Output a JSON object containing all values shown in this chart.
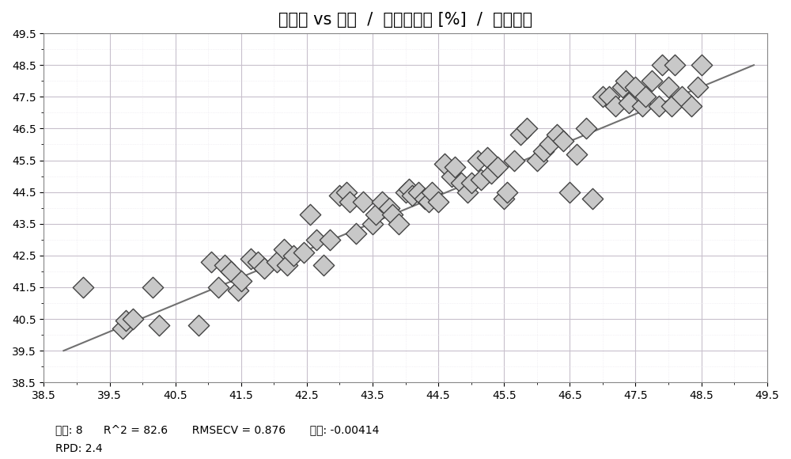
{
  "title": "预测值 vs 真值  /  纤维素含量 [%]  /  交叉检验",
  "xlim": [
    38.5,
    49.5
  ],
  "ylim": [
    38.5,
    49.5
  ],
  "xticks": [
    38.5,
    39.5,
    40.5,
    41.5,
    42.5,
    43.5,
    44.5,
    45.5,
    46.5,
    47.5,
    48.5,
    49.5
  ],
  "yticks": [
    38.5,
    39.5,
    40.5,
    41.5,
    42.5,
    43.5,
    44.5,
    45.5,
    46.5,
    47.5,
    48.5,
    49.5
  ],
  "xlabel_labels": [
    "38.5",
    "39.5",
    "40.5",
    "41.5",
    "42.5",
    "43.5",
    "44.5",
    "45.5",
    "46.5",
    "47.5",
    "48.5",
    "49.5"
  ],
  "ylabel_labels": [
    "38.5",
    "39.5",
    "40.5",
    "41.5",
    "42.5",
    "43.5",
    "44.5",
    "45.5",
    "46.5",
    "47.5",
    "48.5",
    "49.5"
  ],
  "scatter_x": [
    39.1,
    39.7,
    39.75,
    39.85,
    40.15,
    40.25,
    40.85,
    41.05,
    41.15,
    41.25,
    41.35,
    41.45,
    41.5,
    41.65,
    41.75,
    41.85,
    42.05,
    42.15,
    42.2,
    42.3,
    42.45,
    42.55,
    42.65,
    42.75,
    42.85,
    43.0,
    43.1,
    43.15,
    43.25,
    43.35,
    43.5,
    43.55,
    43.65,
    43.75,
    43.8,
    43.9,
    44.0,
    44.05,
    44.1,
    44.2,
    44.3,
    44.35,
    44.4,
    44.5,
    44.6,
    44.7,
    44.75,
    44.85,
    44.95,
    45.0,
    45.1,
    45.15,
    45.25,
    45.3,
    45.4,
    45.5,
    45.55,
    45.65,
    45.75,
    45.85,
    46.0,
    46.1,
    46.2,
    46.3,
    46.4,
    46.5,
    46.6,
    46.75,
    46.85,
    47.0,
    47.1,
    47.2,
    47.3,
    47.35,
    47.4,
    47.5,
    47.6,
    47.65,
    47.75,
    47.85,
    47.9,
    48.0,
    48.05,
    48.1,
    48.2,
    48.35,
    48.45,
    48.5
  ],
  "scatter_y": [
    41.5,
    40.2,
    40.45,
    40.5,
    41.5,
    40.3,
    40.3,
    42.3,
    41.5,
    42.2,
    42.0,
    41.4,
    41.7,
    42.4,
    42.3,
    42.1,
    42.3,
    42.7,
    42.2,
    42.5,
    42.6,
    43.8,
    43.0,
    42.2,
    43.0,
    44.4,
    44.5,
    44.2,
    43.2,
    44.2,
    43.5,
    43.8,
    44.2,
    44.0,
    43.8,
    43.5,
    44.5,
    44.6,
    44.4,
    44.5,
    44.3,
    44.2,
    44.5,
    44.2,
    45.4,
    45.0,
    45.3,
    44.8,
    44.5,
    44.8,
    45.5,
    44.9,
    45.6,
    45.1,
    45.3,
    44.3,
    44.5,
    45.5,
    46.3,
    46.5,
    45.5,
    45.8,
    46.0,
    46.3,
    46.1,
    44.5,
    45.7,
    46.5,
    44.3,
    47.5,
    47.5,
    47.2,
    47.8,
    48.0,
    47.3,
    47.8,
    47.2,
    47.5,
    48.0,
    47.2,
    48.5,
    47.8,
    47.2,
    48.5,
    47.5,
    47.2,
    47.8,
    48.5
  ],
  "line_x": [
    38.8,
    49.3
  ],
  "line_y": [
    39.5,
    48.5
  ],
  "marker_color": "#c8c8c8",
  "marker_edge_color": "#444444",
  "line_color": "#707070",
  "bg_color": "#ffffff",
  "grid_major_color": "#c8c0cc",
  "grid_minor_color": "#e8e4ec",
  "title_fontsize": 15,
  "tick_fontsize": 10,
  "annotation_line1": "维数: 8      R^2 = 82.6       RMSECV = 0.876       偏移: -0.00414",
  "annotation_line2": "RPD: 2.4"
}
